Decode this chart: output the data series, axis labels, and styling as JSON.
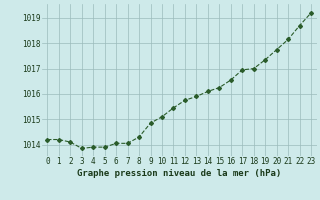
{
  "x": [
    0,
    1,
    2,
    3,
    4,
    5,
    6,
    7,
    8,
    9,
    10,
    11,
    12,
    13,
    14,
    15,
    16,
    17,
    18,
    19,
    20,
    21,
    22,
    23
  ],
  "y": [
    1014.2,
    1014.2,
    1014.1,
    1013.85,
    1013.9,
    1013.9,
    1014.05,
    1014.05,
    1014.3,
    1014.85,
    1015.1,
    1015.45,
    1015.75,
    1015.9,
    1016.1,
    1016.25,
    1016.55,
    1016.95,
    1017.0,
    1017.35,
    1017.75,
    1018.15,
    1018.7,
    1019.2
  ],
  "line_color": "#2a5c2a",
  "marker": "D",
  "marker_size": 2,
  "line_width": 0.8,
  "bg_color": "#ceeaea",
  "grid_color": "#9bbcbc",
  "xlabel": "Graphe pression niveau de la mer (hPa)",
  "xlabel_color": "#1a3a1a",
  "xlabel_fontsize": 6.5,
  "tick_color": "#1a3a1a",
  "tick_fontsize": 5.5,
  "yticks": [
    1014,
    1015,
    1016,
    1017,
    1018,
    1019
  ],
  "xticks": [
    0,
    1,
    2,
    3,
    4,
    5,
    6,
    7,
    8,
    9,
    10,
    11,
    12,
    13,
    14,
    15,
    16,
    17,
    18,
    19,
    20,
    21,
    22,
    23
  ],
  "ylim": [
    1013.55,
    1019.55
  ],
  "xlim": [
    -0.5,
    23.5
  ]
}
